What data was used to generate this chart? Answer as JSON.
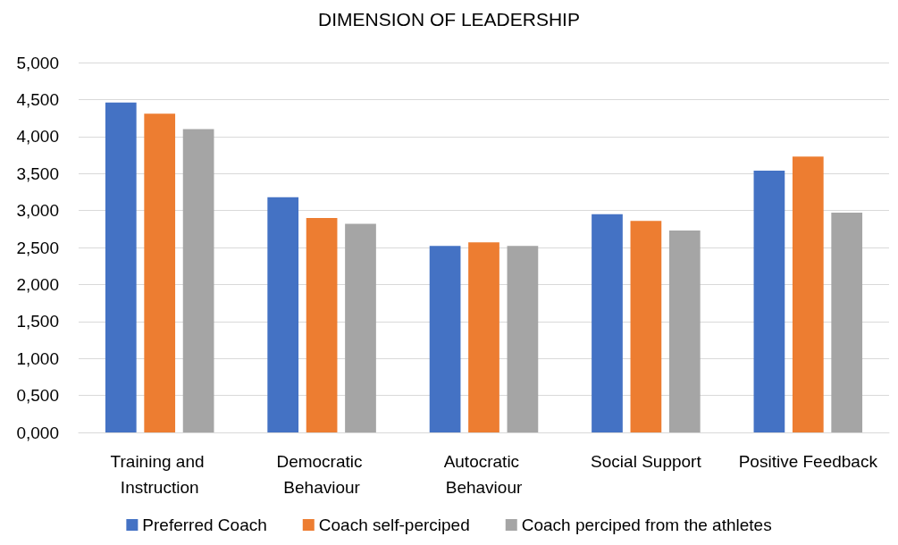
{
  "chart_data": {
    "type": "bar",
    "title": "DIMENSION OF LEADERSHIP",
    "categories": [
      "Training and Instruction",
      "Democratic Behaviour",
      "Autocratic Behaviour",
      "Social Support",
      "Positive Feedback"
    ],
    "series": [
      {
        "name": "Preferred Coach",
        "color": "#4472c4",
        "values": [
          4.46,
          3.18,
          2.52,
          2.95,
          3.54
        ]
      },
      {
        "name": "Coach self-perciped",
        "color": "#ed7d31",
        "values": [
          4.31,
          2.9,
          2.57,
          2.86,
          3.73
        ]
      },
      {
        "name": "Coach perciped from the athletes",
        "color": "#a5a5a5",
        "values": [
          4.1,
          2.82,
          2.52,
          2.73,
          2.97
        ]
      }
    ],
    "ylim": [
      0,
      5
    ],
    "yticks": [
      {
        "value": 0,
        "label": "0,000"
      },
      {
        "value": 0.5,
        "label": "0,500"
      },
      {
        "value": 1,
        "label": "1,000"
      },
      {
        "value": 1.5,
        "label": "1,500"
      },
      {
        "value": 2,
        "label": "2,000"
      },
      {
        "value": 2.5,
        "label": "2,500"
      },
      {
        "value": 3,
        "label": "3,000"
      },
      {
        "value": 3.5,
        "label": "3,500"
      },
      {
        "value": 4,
        "label": "4,000"
      },
      {
        "value": 4.5,
        "label": "4,500"
      },
      {
        "value": 5,
        "label": "5,000"
      }
    ],
    "grid": "y",
    "legend": "bottom"
  }
}
